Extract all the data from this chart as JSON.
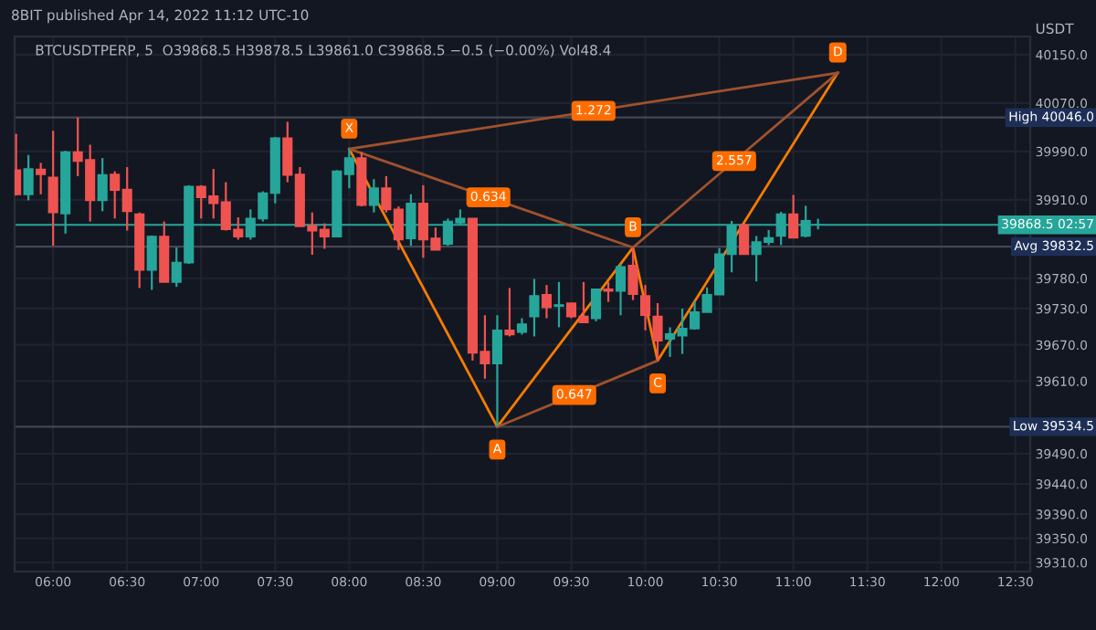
{
  "chart_data": {
    "type": "candlestick",
    "title": "8BIT published Apr 14, 2022 11:12 UTC-10",
    "subtitle": "BTCUSDTPERP, 5  O39868.5 H39878.5 L39861.0 C39868.5 −0.5 (−0.00%) Vol48.4",
    "ylabel": "USDT",
    "x": [
      5.75,
      5.8333,
      5.9167,
      6,
      6.0833,
      6.1667,
      6.25,
      6.3333,
      6.4167,
      6.5,
      6.5833,
      6.6667,
      6.75,
      6.8333,
      6.9167,
      7,
      7.0833,
      7.1667,
      7.25,
      7.3333,
      7.4167,
      7.5,
      7.5833,
      7.6667,
      7.75,
      7.8333,
      7.9167,
      8,
      8.0833,
      8.1667,
      8.25,
      8.3333,
      8.4167,
      8.5,
      8.5833,
      8.6667,
      8.75,
      8.8333,
      8.9167,
      9,
      9.0833,
      9.1667,
      9.25,
      9.3333,
      9.4167,
      9.5,
      9.5833,
      9.6667,
      9.75,
      9.8333,
      9.9167,
      10,
      10.0833,
      10.1667,
      10.25,
      10.3333,
      10.4167,
      10.5,
      10.5833,
      10.6667,
      10.75,
      10.8333,
      10.9167,
      11,
      11.0833,
      11.1667
    ],
    "ohlc": [
      [
        39959,
        40019,
        39917,
        39919
      ],
      [
        39919,
        39984,
        39909,
        39961
      ],
      [
        39960,
        39971,
        39919,
        39952
      ],
      [
        39947,
        40024,
        39834,
        39889
      ],
      [
        39887,
        39991,
        39854,
        39989
      ],
      [
        39989,
        40046,
        39949,
        39974
      ],
      [
        39976,
        40001,
        39874,
        39909
      ],
      [
        39909,
        39979,
        39891,
        39951
      ],
      [
        39952,
        39957,
        39879,
        39926
      ],
      [
        39927,
        39964,
        39859,
        39891
      ],
      [
        39886,
        39889,
        39764,
        39794
      ],
      [
        39794,
        39851,
        39761,
        39849
      ],
      [
        39849,
        39874,
        39774,
        39774
      ],
      [
        39774,
        39831,
        39766,
        39806
      ],
      [
        39806,
        39934,
        39804,
        39932
      ],
      [
        39932,
        39934,
        39879,
        39914
      ],
      [
        39916,
        39961,
        39879,
        39904
      ],
      [
        39906,
        39939,
        39859,
        39861
      ],
      [
        39861,
        39881,
        39844,
        39849
      ],
      [
        39849,
        39894,
        39844,
        39879
      ],
      [
        39879,
        39924,
        39874,
        39921
      ],
      [
        39921,
        40014,
        39904,
        40012
      ],
      [
        40012,
        40039,
        39939,
        39951
      ],
      [
        39952,
        39964,
        39866,
        39866
      ],
      [
        39867,
        39889,
        39819,
        39859
      ],
      [
        39861,
        39871,
        39829,
        39849
      ],
      [
        39849,
        39959,
        39849,
        39957
      ],
      [
        39952,
        39994,
        39929,
        39979
      ],
      [
        39979,
        39989,
        39899,
        39901
      ],
      [
        39901,
        39944,
        39889,
        39929
      ],
      [
        39929,
        39949,
        39889,
        39894
      ],
      [
        39894,
        39899,
        39827,
        39844
      ],
      [
        39846,
        39919,
        39834,
        39904
      ],
      [
        39904,
        39934,
        39814,
        39844
      ],
      [
        39846,
        39864,
        39827,
        39827
      ],
      [
        39837,
        39879,
        39834,
        39874
      ],
      [
        39872,
        39894,
        39869,
        39879
      ],
      [
        39879,
        39879,
        39644,
        39657
      ],
      [
        39659,
        39719,
        39614,
        39639
      ],
      [
        39639,
        39719,
        39534.5,
        39694
      ],
      [
        39694,
        39764,
        39684,
        39687
      ],
      [
        39691,
        39714,
        39687,
        39704
      ],
      [
        39717,
        39779,
        39684,
        39751
      ],
      [
        39753,
        39769,
        39714,
        39732
      ],
      [
        39734,
        39774,
        39699,
        39736
      ],
      [
        39739,
        39739,
        39714,
        39717
      ],
      [
        39717,
        39774,
        39707,
        39707
      ],
      [
        39714,
        39762,
        39709,
        39762
      ],
      [
        39762,
        39774,
        39741,
        39759
      ],
      [
        39759,
        39804,
        39719,
        39799
      ],
      [
        39801,
        39831,
        39744,
        39754
      ],
      [
        39751,
        39769,
        39694,
        39719
      ],
      [
        39717,
        39739,
        39644,
        39677
      ],
      [
        39680,
        39699,
        39650,
        39688
      ],
      [
        39685,
        39730,
        39655,
        39697
      ],
      [
        39697,
        39742,
        39695,
        39724
      ],
      [
        39724,
        39765,
        39724,
        39753
      ],
      [
        39753,
        39830,
        39753,
        39820
      ],
      [
        39820,
        39875,
        39790,
        39866
      ],
      [
        39868,
        39870,
        39820,
        39820
      ],
      [
        39820,
        39850,
        39775,
        39840
      ],
      [
        39840,
        39860,
        39835,
        39847
      ],
      [
        39850,
        39890,
        39835,
        39886
      ],
      [
        39886,
        39918,
        39847,
        39847
      ],
      [
        39850,
        39900,
        39848,
        39875
      ],
      [
        39868.5,
        39878.5,
        39861.0,
        39868.5
      ]
    ],
    "colors": [
      "#ef5350",
      "#26a69a",
      "#ef5350",
      "#ef5350",
      "#26a69a",
      "#ef5350",
      "#ef5350",
      "#26a69a",
      "#ef5350",
      "#ef5350",
      "#ef5350",
      "#26a69a",
      "#ef5350",
      "#26a69a",
      "#26a69a",
      "#ef5350",
      "#ef5350",
      "#ef5350",
      "#ef5350",
      "#26a69a",
      "#26a69a",
      "#26a69a",
      "#ef5350",
      "#ef5350",
      "#ef5350",
      "#ef5350",
      "#26a69a",
      "#26a69a",
      "#ef5350",
      "#26a69a",
      "#ef5350",
      "#ef5350",
      "#26a69a",
      "#ef5350",
      "#ef5350",
      "#26a69a",
      "#26a69a",
      "#ef5350",
      "#ef5350",
      "#26a69a",
      "#ef5350",
      "#26a69a",
      "#26a69a",
      "#ef5350",
      "#26a69a",
      "#ef5350",
      "#ef5350",
      "#26a69a",
      "#ef5350",
      "#26a69a",
      "#ef5350",
      "#ef5350",
      "#ef5350",
      "#26a69a",
      "#26a69a",
      "#26a69a",
      "#26a69a",
      "#26a69a",
      "#26a69a",
      "#ef5350",
      "#26a69a",
      "#26a69a",
      "#26a69a",
      "#ef5350",
      "#26a69a",
      "#26a69a"
    ],
    "series": [
      {
        "type": "line",
        "color": "#f57c00",
        "line_style": "solid",
        "x": [
          8,
          9,
          9.9167,
          10.0833,
          11.3
        ],
        "values": [
          39994,
          39534.5,
          39831,
          39644,
          40120
        ]
      },
      {
        "type": "line",
        "color": "#a0522d",
        "line_style": "solid",
        "x": [
          8,
          9.9167
        ],
        "values": [
          39994,
          39831
        ]
      },
      {
        "type": "line",
        "color": "#a0522d",
        "line_style": "solid",
        "x": [
          9,
          10.0833
        ],
        "values": [
          39534.5,
          39644
        ]
      },
      {
        "type": "line",
        "color": "#a0522d",
        "line_style": "solid",
        "x": [
          9.9167,
          11.3
        ],
        "values": [
          39831,
          40120
        ]
      },
      {
        "type": "line",
        "color": "#a0522d",
        "line_style": "solid",
        "x": [
          8,
          11.3
        ],
        "values": [
          39994,
          40120
        ]
      }
    ],
    "annotations": [
      {
        "text": "X",
        "x": 8,
        "y": 39994
      },
      {
        "text": "A",
        "x": 9,
        "y": 39534.5
      },
      {
        "text": "B",
        "x": 9.9167,
        "y": 39831
      },
      {
        "text": "C",
        "x": 10.0833,
        "y": 39644
      },
      {
        "text": "D",
        "x": 11.3,
        "y": 40120
      },
      {
        "text": "0.634",
        "x": 8.94,
        "y": 39914
      },
      {
        "text": "0.647",
        "x": 9.52,
        "y": 39587
      },
      {
        "text": "2.557",
        "x": 10.6,
        "y": 39974
      },
      {
        "text": "1.272",
        "x": 9.65,
        "y": 40057
      }
    ],
    "ref_lines": [
      {
        "axis": "y",
        "value": 40046.0,
        "label": "High 40046.0",
        "color": "#434651"
      },
      {
        "axis": "y",
        "value": 39832.5,
        "label": "Avg 39832.5",
        "color": "#434651"
      },
      {
        "axis": "y",
        "value": 39534.5,
        "label": "Low 39534.5",
        "color": "#434651"
      },
      {
        "axis": "y",
        "value": 39868.5,
        "label": "39868.5 02:57",
        "color": "#26a69a"
      }
    ],
    "xlim": [
      5.74,
      12.6
    ],
    "ylim": [
      39295,
      40180
    ],
    "xticks": [
      {
        "value": 6,
        "label": "06:00"
      },
      {
        "value": 6.5,
        "label": "06:30"
      },
      {
        "value": 7,
        "label": "07:00"
      },
      {
        "value": 7.5,
        "label": "07:30"
      },
      {
        "value": 8,
        "label": "08:00"
      },
      {
        "value": 8.5,
        "label": "08:30"
      },
      {
        "value": 9,
        "label": "09:00"
      },
      {
        "value": 9.5,
        "label": "09:30"
      },
      {
        "value": 10,
        "label": "10:00"
      },
      {
        "value": 10.5,
        "label": "10:30"
      },
      {
        "value": 11,
        "label": "11:00"
      },
      {
        "value": 11.5,
        "label": "11:30"
      },
      {
        "value": 12,
        "label": "12:00"
      },
      {
        "value": 12.5,
        "label": "12:30"
      }
    ],
    "yticks": [
      {
        "value": 40150,
        "label": "40150.0"
      },
      {
        "value": 40070,
        "label": "40070.0"
      },
      {
        "value": 39990,
        "label": "39990.0"
      },
      {
        "value": 39910,
        "label": "39910.0"
      },
      {
        "value": 39780,
        "label": "39780.0"
      },
      {
        "value": 39730,
        "label": "39730.0"
      },
      {
        "value": 39670,
        "label": "39670.0"
      },
      {
        "value": 39610,
        "label": "39610.0"
      },
      {
        "value": 39490,
        "label": "39490.0"
      },
      {
        "value": 39440,
        "label": "39440.0"
      },
      {
        "value": 39390,
        "label": "39390.0"
      },
      {
        "value": 39350,
        "label": "39350.0"
      },
      {
        "value": 39310,
        "label": "39310.0"
      }
    ],
    "grid": true
  }
}
